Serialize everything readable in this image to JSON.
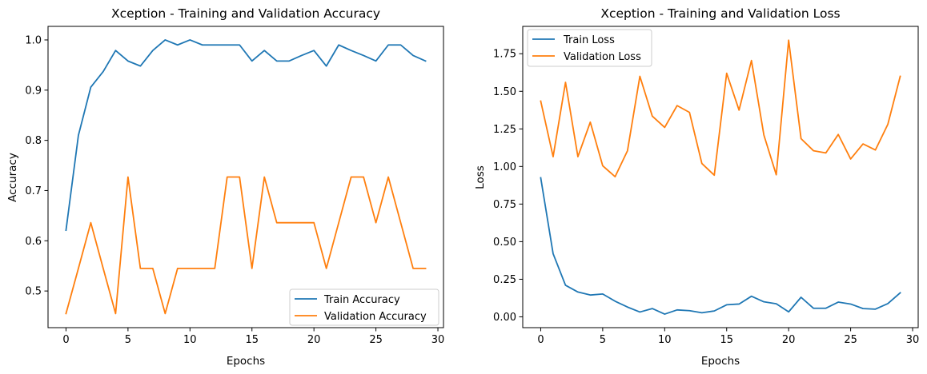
{
  "chart_data": [
    {
      "type": "line",
      "title": "Xception - Training and Validation Accuracy",
      "xlabel": "Epochs",
      "ylabel": "Accuracy",
      "xlim": [
        -1.45,
        30.45
      ],
      "ylim": [
        0.427,
        1.027
      ],
      "xticks": [
        0,
        5,
        10,
        15,
        20,
        25,
        30
      ],
      "yticks": [
        0.5,
        0.6,
        0.7,
        0.8,
        0.9,
        1.0
      ],
      "ytick_labels": [
        "0.5",
        "0.6",
        "0.7",
        "0.8",
        "0.9",
        "1.0"
      ],
      "grid": false,
      "legend_position": "lower right",
      "x": [
        0,
        1,
        2,
        3,
        4,
        5,
        6,
        7,
        8,
        9,
        10,
        11,
        12,
        13,
        14,
        15,
        16,
        17,
        18,
        19,
        20,
        21,
        22,
        23,
        24,
        25,
        26,
        27,
        28,
        29
      ],
      "series": [
        {
          "name": "Train Accuracy",
          "color": "#1f77b4",
          "values": [
            0.621,
            0.81,
            0.906,
            0.937,
            0.979,
            0.958,
            0.948,
            0.979,
            1.0,
            0.99,
            1.0,
            0.99,
            0.99,
            0.99,
            0.99,
            0.958,
            0.979,
            0.958,
            0.958,
            0.969,
            0.979,
            0.948,
            0.99,
            0.979,
            0.969,
            0.958,
            0.99,
            0.99,
            0.969,
            0.958
          ]
        },
        {
          "name": "Validation Accuracy",
          "color": "#ff7f0e",
          "values": [
            0.455,
            0.545,
            0.636,
            0.545,
            0.455,
            0.727,
            0.545,
            0.545,
            0.455,
            0.545,
            0.545,
            0.545,
            0.545,
            0.727,
            0.727,
            0.545,
            0.727,
            0.636,
            0.636,
            0.636,
            0.636,
            0.545,
            0.636,
            0.727,
            0.727,
            0.636,
            0.727,
            0.636,
            0.545,
            0.545
          ]
        }
      ]
    },
    {
      "type": "line",
      "title": "Xception - Training and Validation Loss",
      "xlabel": "Epochs",
      "ylabel": "Loss",
      "xlim": [
        -1.45,
        30.45
      ],
      "ylim": [
        -0.072,
        1.932
      ],
      "xticks": [
        0,
        5,
        10,
        15,
        20,
        25,
        30
      ],
      "yticks": [
        0.0,
        0.25,
        0.5,
        0.75,
        1.0,
        1.25,
        1.5,
        1.75
      ],
      "ytick_labels": [
        "0.00",
        "0.25",
        "0.50",
        "0.75",
        "1.00",
        "1.25",
        "1.50",
        "1.75"
      ],
      "grid": false,
      "legend_position": "upper left",
      "x": [
        0,
        1,
        2,
        3,
        4,
        5,
        6,
        7,
        8,
        9,
        10,
        11,
        12,
        13,
        14,
        15,
        16,
        17,
        18,
        19,
        20,
        21,
        22,
        23,
        24,
        25,
        26,
        27,
        28,
        29
      ],
      "series": [
        {
          "name": "Train Loss",
          "color": "#1f77b4",
          "values": [
            0.925,
            0.42,
            0.21,
            0.165,
            0.145,
            0.152,
            0.104,
            0.065,
            0.032,
            0.055,
            0.018,
            0.046,
            0.041,
            0.027,
            0.039,
            0.08,
            0.085,
            0.137,
            0.1,
            0.087,
            0.033,
            0.13,
            0.057,
            0.057,
            0.098,
            0.085,
            0.055,
            0.051,
            0.088,
            0.16
          ]
        },
        {
          "name": "Validation Loss",
          "color": "#ff7f0e",
          "values": [
            1.435,
            1.065,
            1.56,
            1.065,
            1.295,
            1.005,
            0.932,
            1.105,
            1.6,
            1.335,
            1.26,
            1.405,
            1.36,
            1.02,
            0.942,
            1.62,
            1.375,
            1.705,
            1.21,
            0.945,
            1.84,
            1.185,
            1.105,
            1.09,
            1.213,
            1.05,
            1.15,
            1.11,
            1.28,
            1.6
          ]
        }
      ]
    }
  ]
}
